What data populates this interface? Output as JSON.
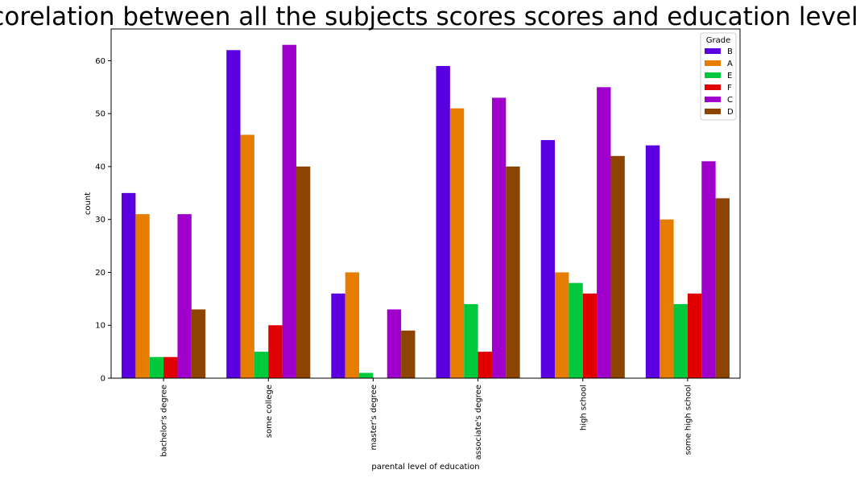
{
  "chart_data": {
    "type": "bar",
    "title": "corelation between all the subjects scores scores and education level",
    "xlabel": "parental level of education",
    "ylabel": "count",
    "categories": [
      "bachelor's degree",
      "some college",
      "master's degree",
      "associate's degree",
      "high school",
      "some high school"
    ],
    "ylim": [
      0,
      66
    ],
    "yticks": [
      0,
      10,
      20,
      30,
      40,
      50,
      60
    ],
    "grid": false,
    "legend": {
      "title": "Grade",
      "placement": "top-right"
    },
    "series": [
      {
        "name": "B",
        "color": "#5a00e0",
        "values": [
          35,
          62,
          16,
          59,
          45,
          44
        ]
      },
      {
        "name": "A",
        "color": "#e67c00",
        "values": [
          31,
          46,
          20,
          51,
          20,
          30
        ]
      },
      {
        "name": "E",
        "color": "#00c83c",
        "values": [
          4,
          5,
          1,
          14,
          18,
          14
        ]
      },
      {
        "name": "F",
        "color": "#e00000",
        "values": [
          4,
          10,
          0,
          5,
          16,
          16
        ]
      },
      {
        "name": "C",
        "color": "#a000cc",
        "values": [
          31,
          63,
          13,
          53,
          55,
          41
        ]
      },
      {
        "name": "D",
        "color": "#8c4400",
        "values": [
          13,
          40,
          9,
          40,
          42,
          34
        ]
      }
    ]
  }
}
